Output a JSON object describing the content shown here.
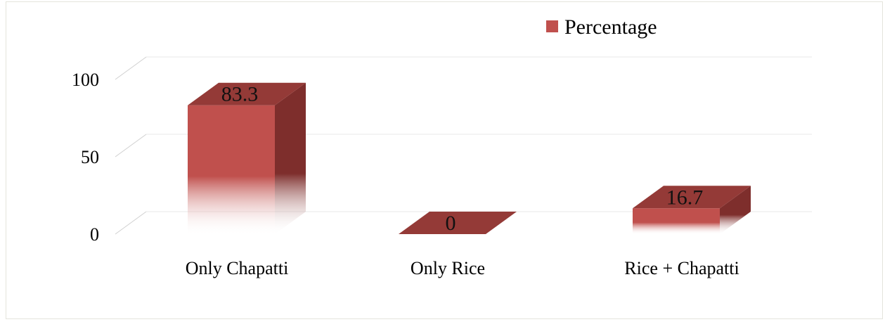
{
  "chart_data": {
    "type": "bar",
    "categories": [
      "Only Chapatti",
      "Only Rice",
      "Rice + Chapatti"
    ],
    "series": [
      {
        "name": "Percentage",
        "values": [
          83.3,
          0,
          16.7
        ]
      }
    ],
    "data_labels": [
      "83.3",
      "0",
      "16.7"
    ],
    "y_ticks": [
      "0",
      "50",
      "100"
    ],
    "ylim": [
      0,
      100
    ],
    "grid": true,
    "legend_position": "top-right",
    "colors": {
      "bar_front": "#c0504d",
      "bar_side": "#7e2e2c",
      "bar_top": "#943a37",
      "grid": "#e8e8e8"
    }
  }
}
